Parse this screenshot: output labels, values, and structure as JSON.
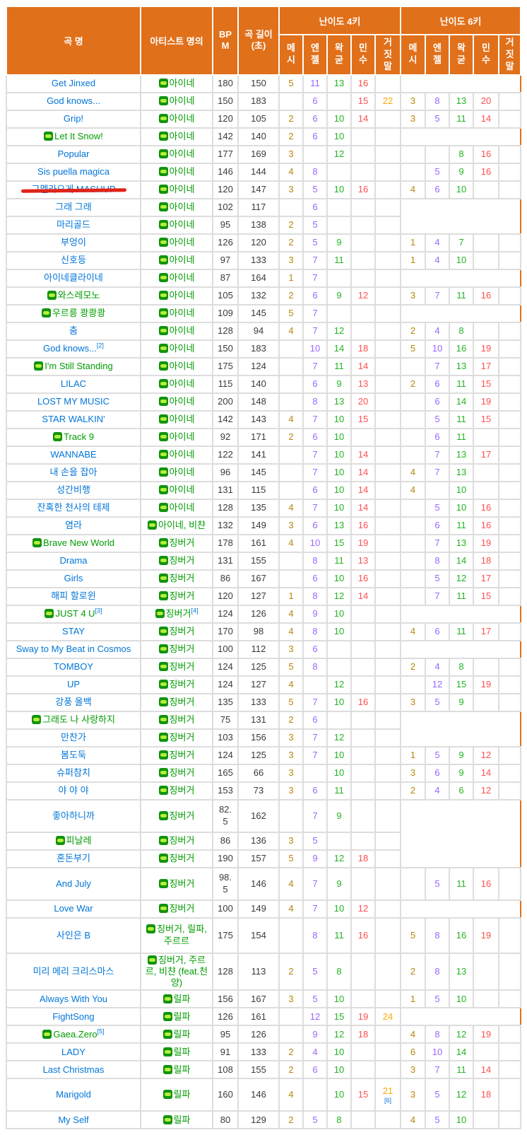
{
  "header": {
    "col_song": "곡 명",
    "col_artist": "아티스트 명의",
    "col_bpm": "BPM",
    "col_length": "곡 길이 (초)",
    "group_4k": "난이도 4키",
    "group_6k": "난이도 6키",
    "difficulty_cols": [
      "메시",
      "엔젤",
      "왁굳",
      "민수",
      "거짓말"
    ]
  },
  "colors": {
    "header_bg": "#e1701a",
    "grid_border": "#dddddd",
    "link_internal": "#0275d8",
    "link_external": "#009c00",
    "diff_mesi": "#b8860b",
    "diff_angel": "#9966ff",
    "diff_wakgood": "#22b322",
    "diff_minsu": "#ff4f4f",
    "diff_lie": "#ffa800",
    "strike_line": "#e02318"
  },
  "icons": {
    "music_badge": "music-badge-icon"
  },
  "rows": [
    {
      "song": "Get Jinxed",
      "link": "int",
      "artist": "아이네",
      "bpm": "180",
      "len": "150",
      "k4": [
        "5",
        "11",
        "13",
        "16",
        ""
      ],
      "k6_merge": 1
    },
    {
      "song": "God knows...",
      "link": "int",
      "artist": "아이네",
      "bpm": "150",
      "len": "183",
      "k4": [
        "",
        "6",
        "",
        "15",
        "22"
      ],
      "k6": [
        "3",
        "8",
        "13",
        "20",
        ""
      ]
    },
    {
      "song": "Grip!",
      "link": "int",
      "artist": "아이네",
      "bpm": "120",
      "len": "105",
      "k4": [
        "2",
        "6",
        "10",
        "14",
        ""
      ],
      "k6": [
        "3",
        "5",
        "11",
        "14",
        ""
      ]
    },
    {
      "song": "Let It Snow!",
      "link": "ext",
      "artist": "아이네",
      "bpm": "142",
      "len": "140",
      "k4": [
        "2",
        "6",
        "10",
        "",
        ""
      ],
      "k6_merge": 1
    },
    {
      "song": "Popular",
      "link": "int",
      "artist": "아이네",
      "bpm": "177",
      "len": "169",
      "k4": [
        "3",
        "",
        "12",
        "",
        ""
      ],
      "k6": [
        "",
        "",
        "8",
        "16",
        ""
      ]
    },
    {
      "song": "Sis puella magica",
      "link": "int",
      "artist": "아이네",
      "bpm": "146",
      "len": "144",
      "k4": [
        "4",
        "8",
        "",
        "",
        ""
      ],
      "k6": [
        "",
        "5",
        "9",
        "16",
        ""
      ]
    },
    {
      "song": "그멜라오게 MASHUP",
      "link": "int",
      "strike": true,
      "artist": "아이네",
      "bpm": "120",
      "len": "147",
      "k4": [
        "3",
        "5",
        "10",
        "16",
        ""
      ],
      "k6": [
        "4",
        "6",
        "10",
        "",
        ""
      ]
    },
    {
      "song": "그래 그래",
      "link": "int",
      "artist": "아이네",
      "bpm": "102",
      "len": "117",
      "k4": [
        "",
        "6",
        "",
        "",
        ""
      ],
      "k6_merge": 2
    },
    {
      "song": "마리골드",
      "link": "int",
      "artist": "아이네",
      "bpm": "95",
      "len": "138",
      "k4": [
        "2",
        "5",
        "",
        "",
        ""
      ],
      "k6_cont": true
    },
    {
      "song": "부엉이",
      "link": "int",
      "artist": "아이네",
      "bpm": "126",
      "len": "120",
      "k4": [
        "2",
        "5",
        "9",
        "",
        ""
      ],
      "k6": [
        "1",
        "4",
        "7",
        "",
        ""
      ]
    },
    {
      "song": "신호등",
      "link": "int",
      "artist": "아이네",
      "bpm": "97",
      "len": "133",
      "k4": [
        "3",
        "7",
        "11",
        "",
        ""
      ],
      "k6": [
        "1",
        "4",
        "10",
        "",
        ""
      ]
    },
    {
      "song": "아이네클라이네",
      "link": "int",
      "artist": "아이네",
      "bpm": "87",
      "len": "164",
      "k4": [
        "1",
        "7",
        "",
        "",
        ""
      ],
      "k6_merge": 1
    },
    {
      "song": "와스레모노",
      "link": "ext",
      "artist": "아이네",
      "bpm": "105",
      "len": "132",
      "k4": [
        "2",
        "6",
        "9",
        "12",
        ""
      ],
      "k6": [
        "3",
        "7",
        "11",
        "16",
        ""
      ]
    },
    {
      "song": "우르릉 쾅쾅쾅",
      "link": "ext",
      "artist": "아이네",
      "bpm": "109",
      "len": "145",
      "k4": [
        "5",
        "7",
        "",
        "",
        ""
      ],
      "k6_merge": 1
    },
    {
      "song": "춤",
      "link": "int",
      "artist": "아이네",
      "bpm": "128",
      "len": "94",
      "k4": [
        "4",
        "7",
        "12",
        "",
        ""
      ],
      "k6": [
        "2",
        "4",
        "8",
        "",
        ""
      ]
    },
    {
      "song": "God knows...",
      "sup": "[2]",
      "link": "int",
      "artist": "아이네",
      "bpm": "150",
      "len": "183",
      "k4": [
        "",
        "10",
        "14",
        "18",
        ""
      ],
      "k6": [
        "5",
        "10",
        "16",
        "19",
        ""
      ]
    },
    {
      "song": "I'm Still Standing",
      "link": "ext",
      "artist": "아이네",
      "bpm": "175",
      "len": "124",
      "k4": [
        "",
        "7",
        "11",
        "14",
        ""
      ],
      "k6": [
        "",
        "7",
        "13",
        "17",
        ""
      ]
    },
    {
      "song": "LILAC",
      "link": "int",
      "artist": "아이네",
      "bpm": "115",
      "len": "140",
      "k4": [
        "",
        "6",
        "9",
        "13",
        ""
      ],
      "k6": [
        "2",
        "6",
        "11",
        "15",
        ""
      ]
    },
    {
      "song": "LOST MY MUSIC",
      "link": "int",
      "artist": "아이네",
      "bpm": "200",
      "len": "148",
      "k4": [
        "",
        "8",
        "13",
        "20",
        ""
      ],
      "k6": [
        "",
        "6",
        "14",
        "19",
        ""
      ]
    },
    {
      "song": "STAR WALKIN'",
      "link": "int",
      "artist": "아이네",
      "bpm": "142",
      "len": "143",
      "k4": [
        "4",
        "7",
        "10",
        "15",
        ""
      ],
      "k6": [
        "",
        "5",
        "11",
        "15",
        ""
      ]
    },
    {
      "song": "Track 9",
      "link": "ext",
      "artist": "아이네",
      "bpm": "92",
      "len": "171",
      "k4": [
        "2",
        "6",
        "10",
        "",
        ""
      ],
      "k6": [
        "",
        "6",
        "11",
        "",
        ""
      ]
    },
    {
      "song": "WANNABE",
      "link": "int",
      "artist": "아이네",
      "bpm": "122",
      "len": "141",
      "k4": [
        "",
        "7",
        "10",
        "14",
        ""
      ],
      "k6": [
        "",
        "7",
        "13",
        "17",
        ""
      ]
    },
    {
      "song": "내 손을 잡아",
      "link": "int",
      "artist": "아이네",
      "bpm": "96",
      "len": "145",
      "k4": [
        "",
        "7",
        "10",
        "14",
        ""
      ],
      "k6": [
        "4",
        "7",
        "13",
        "",
        ""
      ]
    },
    {
      "song": "성간비행",
      "link": "int",
      "artist": "아이네",
      "bpm": "131",
      "len": "115",
      "k4": [
        "",
        "6",
        "10",
        "14",
        ""
      ],
      "k6": [
        "4",
        "",
        "10",
        "",
        ""
      ]
    },
    {
      "song": "잔혹한 천사의 테제",
      "link": "int",
      "artist": "아이네",
      "bpm": "128",
      "len": "135",
      "k4": [
        "4",
        "7",
        "10",
        "14",
        ""
      ],
      "k6": [
        "",
        "5",
        "10",
        "16",
        ""
      ]
    },
    {
      "song": "염라",
      "link": "int",
      "artist": "아이네, 비챤",
      "bpm": "132",
      "len": "149",
      "k4": [
        "3",
        "6",
        "13",
        "16",
        ""
      ],
      "k6": [
        "",
        "6",
        "11",
        "16",
        ""
      ]
    },
    {
      "song": "Brave New World",
      "link": "ext",
      "artist": "징버거",
      "bpm": "178",
      "len": "161",
      "k4": [
        "4",
        "10",
        "15",
        "19",
        ""
      ],
      "k6": [
        "",
        "7",
        "13",
        "19",
        ""
      ]
    },
    {
      "song": "Drama",
      "link": "int",
      "artist": "징버거",
      "bpm": "131",
      "len": "155",
      "k4": [
        "",
        "8",
        "11",
        "13",
        ""
      ],
      "k6": [
        "",
        "8",
        "14",
        "18",
        ""
      ]
    },
    {
      "song": "Girls",
      "link": "int",
      "artist": "징버거",
      "bpm": "86",
      "len": "167",
      "k4": [
        "",
        "6",
        "10",
        "16",
        ""
      ],
      "k6": [
        "",
        "5",
        "12",
        "17",
        ""
      ]
    },
    {
      "song": "해피 할로윈",
      "link": "int",
      "artist": "징버거",
      "bpm": "120",
      "len": "127",
      "k4": [
        "1",
        "8",
        "12",
        "14",
        ""
      ],
      "k6": [
        "",
        "7",
        "11",
        "15",
        ""
      ]
    },
    {
      "song": "JUST 4 U",
      "sup": "[3]",
      "link": "ext",
      "artist": "징버거",
      "artist_sup": "[4]",
      "bpm": "124",
      "len": "126",
      "k4": [
        "4",
        "9",
        "10",
        "",
        ""
      ],
      "k6_merge": 1
    },
    {
      "song": "STAY",
      "link": "int",
      "artist": "징버거",
      "bpm": "170",
      "len": "98",
      "k4": [
        "4",
        "8",
        "10",
        "",
        ""
      ],
      "k6": [
        "4",
        "6",
        "11",
        "17",
        ""
      ]
    },
    {
      "song": "Sway to My Beat in Cosmos",
      "link": "int",
      "artist": "징버거",
      "bpm": "100",
      "len": "112",
      "k4": [
        "3",
        "6",
        "",
        "",
        ""
      ],
      "k6_merge": 1
    },
    {
      "song": "TOMBOY",
      "link": "int",
      "artist": "징버거",
      "bpm": "124",
      "len": "125",
      "k4": [
        "5",
        "8",
        "",
        "",
        ""
      ],
      "k6": [
        "2",
        "4",
        "8",
        "",
        ""
      ]
    },
    {
      "song": "UP",
      "link": "int",
      "artist": "징버거",
      "bpm": "124",
      "len": "127",
      "k4": [
        "4",
        "",
        "12",
        "",
        ""
      ],
      "k6": [
        "",
        "12",
        "15",
        "19",
        ""
      ]
    },
    {
      "song": "강풍 올백",
      "link": "int",
      "artist": "징버거",
      "bpm": "135",
      "len": "133",
      "k4": [
        "5",
        "7",
        "10",
        "16",
        ""
      ],
      "k6": [
        "3",
        "5",
        "9",
        "",
        ""
      ]
    },
    {
      "song": "그래도 나 사랑하지",
      "link": "ext",
      "artist": "징버거",
      "bpm": "75",
      "len": "131",
      "k4": [
        "2",
        "6",
        "",
        "",
        ""
      ],
      "k6_merge": 2
    },
    {
      "song": "만찬가",
      "link": "int",
      "artist": "징버거",
      "bpm": "103",
      "len": "156",
      "k4": [
        "3",
        "7",
        "12",
        "",
        ""
      ],
      "k6_cont": true
    },
    {
      "song": "봄도둑",
      "link": "int",
      "artist": "징버거",
      "bpm": "124",
      "len": "125",
      "k4": [
        "3",
        "7",
        "10",
        "",
        ""
      ],
      "k6": [
        "1",
        "5",
        "9",
        "12",
        ""
      ]
    },
    {
      "song": "슈퍼참치",
      "link": "int",
      "artist": "징버거",
      "bpm": "165",
      "len": "66",
      "k4": [
        "3",
        "",
        "10",
        "",
        ""
      ],
      "k6": [
        "3",
        "6",
        "9",
        "14",
        ""
      ]
    },
    {
      "song": "야 야 야",
      "link": "int",
      "artist": "징버거",
      "bpm": "153",
      "len": "73",
      "k4": [
        "3",
        "6",
        "11",
        "",
        ""
      ],
      "k6": [
        "2",
        "4",
        "6",
        "12",
        ""
      ]
    },
    {
      "song": "좋아하니까",
      "link": "int",
      "artist": "징버거",
      "bpm": "82.5",
      "len": "162",
      "bpm_wrap": true,
      "h": "h46",
      "k4": [
        "",
        "7",
        "9",
        "",
        ""
      ],
      "k6_merge": 3
    },
    {
      "song": "피날레",
      "link": "ext",
      "artist": "징버거",
      "bpm": "86",
      "len": "136",
      "k4": [
        "3",
        "5",
        "",
        "",
        ""
      ],
      "k6_cont": true
    },
    {
      "song": "혼돈부기",
      "link": "int",
      "artist": "징버거",
      "bpm": "190",
      "len": "157",
      "k4": [
        "5",
        "9",
        "12",
        "18",
        ""
      ],
      "k6_cont": true
    },
    {
      "song": "And July",
      "link": "int",
      "artist": "징버거",
      "bpm": "98.5",
      "len": "146",
      "bpm_wrap": true,
      "h": "h46",
      "k4": [
        "4",
        "7",
        "9",
        "",
        ""
      ],
      "k6": [
        "",
        "5",
        "11",
        "16",
        ""
      ]
    },
    {
      "song": "Love War",
      "link": "int",
      "artist": "징버거",
      "bpm": "100",
      "len": "149",
      "k4": [
        "4",
        "7",
        "10",
        "12",
        ""
      ],
      "k6_merge": 1
    },
    {
      "song": "사인은 B",
      "link": "int",
      "artist": "징버거, 릴파, 주르르",
      "bpm": "175",
      "len": "154",
      "h": "h50",
      "k4": [
        "",
        "8",
        "11",
        "16",
        ""
      ],
      "k6": [
        "5",
        "8",
        "16",
        "19",
        ""
      ]
    },
    {
      "song": "미리 메리 크리스마스",
      "link": "int",
      "artist": "징버거, 주르르, 비챤 (feat.천양)",
      "bpm": "128",
      "len": "113",
      "h": "h50",
      "k4": [
        "2",
        "5",
        "8",
        "",
        ""
      ],
      "k6": [
        "2",
        "8",
        "13",
        "",
        ""
      ]
    },
    {
      "song": "Always With You",
      "link": "int",
      "artist": "릴파",
      "bpm": "156",
      "len": "167",
      "k4": [
        "3",
        "5",
        "10",
        "",
        ""
      ],
      "k6": [
        "1",
        "5",
        "10",
        "",
        ""
      ]
    },
    {
      "song": "FightSong",
      "link": "int",
      "artist": "릴파",
      "bpm": "126",
      "len": "161",
      "k4": [
        "",
        "12",
        "15",
        "19",
        "24"
      ],
      "k6_merge": 1
    },
    {
      "song": "Gaea.Zero",
      "sup": "[5]",
      "link": "ext",
      "artist": "릴파",
      "bpm": "95",
      "len": "126",
      "k4": [
        "",
        "9",
        "12",
        "18",
        ""
      ],
      "k6": [
        "4",
        "8",
        "12",
        "19",
        ""
      ]
    },
    {
      "song": "LADY",
      "link": "int",
      "artist": "릴파",
      "bpm": "91",
      "len": "133",
      "k4": [
        "2",
        "4",
        "10",
        "",
        ""
      ],
      "k6": [
        "6",
        "10",
        "14",
        "",
        ""
      ]
    },
    {
      "song": "Last Christmas",
      "link": "int",
      "artist": "릴파",
      "bpm": "108",
      "len": "155",
      "k4": [
        "2",
        "6",
        "10",
        "",
        ""
      ],
      "k6": [
        "3",
        "7",
        "11",
        "14",
        ""
      ]
    },
    {
      "song": "Marigold",
      "link": "int",
      "artist": "릴파",
      "bpm": "160",
      "len": "146",
      "h": "h46",
      "k4": [
        "4",
        "",
        "10",
        "15",
        "21"
      ],
      "k4_lie_note": "[6]",
      "k6": [
        "3",
        "5",
        "12",
        "18",
        ""
      ]
    },
    {
      "song": "My Self",
      "link": "int",
      "artist": "릴파",
      "bpm": "80",
      "len": "129",
      "k4": [
        "2",
        "5",
        "8",
        "",
        ""
      ],
      "k6": [
        "4",
        "5",
        "10",
        "",
        ""
      ]
    }
  ]
}
